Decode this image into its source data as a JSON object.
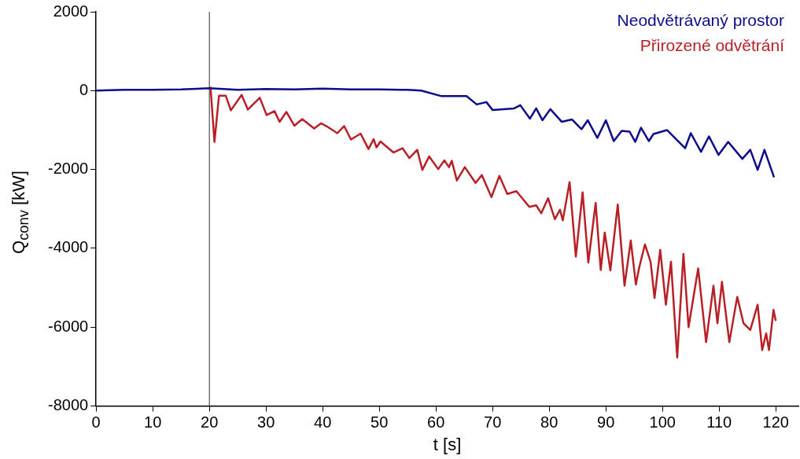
{
  "chart_data": {
    "type": "line",
    "xlabel": "t [s]",
    "ylabel": "Q$_{conv}$ [kW]",
    "xlim": [
      0,
      124
    ],
    "xticks": [
      0,
      10,
      20,
      30,
      40,
      50,
      60,
      70,
      80,
      90,
      100,
      110,
      120
    ],
    "ylim": [
      -8000,
      2000
    ],
    "yticks": [
      -8000,
      -6000,
      -4000,
      -2000,
      0,
      2000
    ],
    "grid": false,
    "legend": "top right",
    "marker": "none",
    "line_style": "solid",
    "ref_lines": [
      {
        "axis": "x",
        "value": 20,
        "color": "#333333"
      }
    ],
    "series": [
      {
        "name": "Neodvětrávaný prostor",
        "color": "#0c0c8a",
        "x": [
          0,
          5,
          10,
          15,
          20,
          25,
          30,
          35,
          40,
          45,
          50,
          55,
          57.4,
          61,
          65.4,
          67.2,
          68.9,
          70,
          73.8,
          74.9,
          76.6,
          77.7,
          78.8,
          80.2,
          82.2,
          84,
          85.7,
          86.8,
          88.5,
          90,
          91.4,
          92.8,
          94.2,
          95.2,
          96.2,
          97.6,
          98.4,
          100.8,
          104,
          105,
          106.8,
          108.2,
          109.9,
          111.6,
          114.1,
          115.5,
          116.8,
          118,
          119.7
        ],
        "values": [
          0,
          20,
          20,
          30,
          60,
          20,
          40,
          30,
          50,
          30,
          30,
          20,
          0,
          -140,
          -140,
          -350,
          -290,
          -490,
          -450,
          -370,
          -710,
          -450,
          -750,
          -470,
          -790,
          -730,
          -980,
          -750,
          -1200,
          -750,
          -1280,
          -1020,
          -1040,
          -1300,
          -940,
          -1280,
          -1100,
          -1000,
          -1460,
          -1080,
          -1550,
          -1160,
          -1630,
          -1300,
          -1730,
          -1500,
          -2010,
          -1500,
          -2200
        ]
      },
      {
        "name": "Přirozené odvětrání",
        "color": "#b82025",
        "x": [
          20.2,
          20.9,
          21.7,
          22.9,
          23.8,
          25.7,
          26.8,
          28.9,
          30.1,
          31.5,
          32.4,
          33.6,
          35,
          36.4,
          38.5,
          39.7,
          40.9,
          42.6,
          43.8,
          45,
          46.7,
          48.1,
          49,
          49.5,
          50.2,
          52.5,
          54.1,
          55.3,
          56.7,
          57.6,
          58.8,
          60.4,
          61.5,
          62.3,
          62.8,
          63.7,
          65.1,
          67,
          68.1,
          69.8,
          71.2,
          72.6,
          74.2,
          76.5,
          77.7,
          78.6,
          79.8,
          81,
          81.9,
          82.4,
          83.6,
          84.7,
          85.9,
          86.9,
          88.2,
          89.1,
          89.8,
          90.8,
          92.1,
          93.3,
          94.4,
          95.3,
          95.9,
          96.9,
          97.9,
          98.6,
          99.6,
          100.6,
          101.5,
          102.6,
          103.7,
          104.6,
          106.3,
          107.7,
          109,
          109.7,
          110.5,
          111.8,
          113.2,
          114.3,
          115.5,
          116.8,
          117.6,
          118.3,
          118.8,
          119.6,
          120
        ],
        "values": [
          100,
          -1300,
          -130,
          -130,
          -500,
          -110,
          -480,
          -180,
          -620,
          -520,
          -790,
          -540,
          -890,
          -720,
          -960,
          -830,
          -920,
          -1080,
          -900,
          -1240,
          -1090,
          -1480,
          -1230,
          -1440,
          -1290,
          -1570,
          -1460,
          -1710,
          -1500,
          -2010,
          -1670,
          -1990,
          -1770,
          -1940,
          -1780,
          -2280,
          -1940,
          -2340,
          -2140,
          -2700,
          -2160,
          -2620,
          -2550,
          -2950,
          -2910,
          -3110,
          -2730,
          -3260,
          -3020,
          -3290,
          -2320,
          -4210,
          -2580,
          -4360,
          -2850,
          -4550,
          -3600,
          -4560,
          -2890,
          -4950,
          -3800,
          -4920,
          -4480,
          -3900,
          -4340,
          -5260,
          -4040,
          -5430,
          -4340,
          -6770,
          -4140,
          -6000,
          -4510,
          -6380,
          -4950,
          -5900,
          -4850,
          -6380,
          -5230,
          -5900,
          -6070,
          -5430,
          -6580,
          -6160,
          -6580,
          -5560,
          -5840
        ]
      }
    ]
  }
}
